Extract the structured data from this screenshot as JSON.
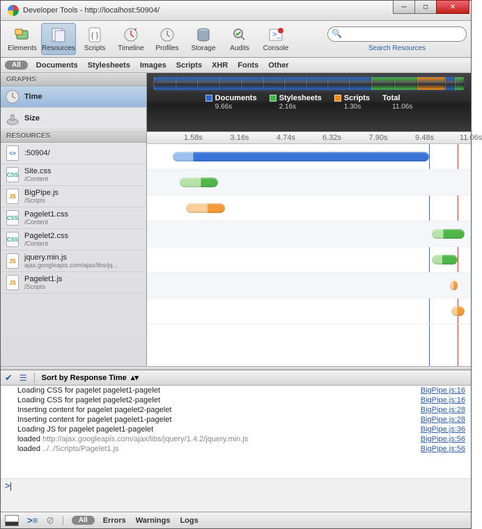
{
  "window": {
    "title": "Developer Tools - http://localhost:50904/"
  },
  "toolbar": {
    "items": [
      {
        "id": "elements",
        "label": "Elements"
      },
      {
        "id": "resources",
        "label": "Resources",
        "active": true
      },
      {
        "id": "scripts",
        "label": "Scripts"
      },
      {
        "id": "timeline",
        "label": "Timeline"
      },
      {
        "id": "profiles",
        "label": "Profiles"
      },
      {
        "id": "storage",
        "label": "Storage"
      },
      {
        "id": "audits",
        "label": "Audits"
      },
      {
        "id": "console",
        "label": "Console"
      }
    ],
    "search_placeholder": "",
    "search_link": "Search Resources"
  },
  "filters": {
    "all": "All",
    "items": [
      "Documents",
      "Stylesheets",
      "Images",
      "Scripts",
      "XHR",
      "Fonts",
      "Other"
    ]
  },
  "sidebar": {
    "graphs_header": "GRAPHS",
    "graphs": [
      {
        "id": "time",
        "label": "Time",
        "selected": true,
        "icon": "clock"
      },
      {
        "id": "size",
        "label": "Size",
        "icon": "weight"
      }
    ],
    "resources_header": "RESOURCES",
    "resources": [
      {
        "name": ":50904/",
        "path": "",
        "type": "doc"
      },
      {
        "name": "Site.css",
        "path": "/Content",
        "type": "css"
      },
      {
        "name": "BigPipe.js",
        "path": "/Scripts",
        "type": "js"
      },
      {
        "name": "Pagelet1.css",
        "path": "/Content",
        "type": "css"
      },
      {
        "name": "Pagelet2.css",
        "path": "/Content",
        "type": "css"
      },
      {
        "name": "jquery.min.js",
        "path": "ajax.googleapis.com/ajax/libs/jq...",
        "type": "js"
      },
      {
        "name": "Pagelet1.js",
        "path": "/Scripts",
        "type": "js"
      }
    ]
  },
  "overview": {
    "segments": [
      {
        "color": "#2b66c9",
        "pct": 70
      },
      {
        "color": "#45b648",
        "pct": 15
      },
      {
        "color": "#f28c1e",
        "pct": 9
      },
      {
        "color": "#2b66c9",
        "pct": 3
      },
      {
        "color": "#45b648",
        "pct": 3
      }
    ],
    "legend": [
      {
        "label": "Documents",
        "value": "9.66s",
        "color": "#2b66c9"
      },
      {
        "label": "Stylesheets",
        "value": "2.16s",
        "color": "#45b648"
      },
      {
        "label": "Scripts",
        "value": "1.30s",
        "color": "#f28c1e"
      },
      {
        "label": "Total",
        "value": "11.06s",
        "color": null
      }
    ]
  },
  "timeaxis": {
    "max": 11.06,
    "ticks": [
      {
        "label": "1.58s",
        "pct": 14.3
      },
      {
        "label": "3.16s",
        "pct": 28.6
      },
      {
        "label": "4.74s",
        "pct": 42.9
      },
      {
        "label": "6.32s",
        "pct": 57.1
      },
      {
        "label": "7.90s",
        "pct": 71.4
      },
      {
        "label": "9.48s",
        "pct": 85.7
      },
      {
        "label": "11.06s",
        "pct": 100
      }
    ],
    "markers": [
      {
        "pct": 87,
        "color": "#3b66c9"
      },
      {
        "pct": 96,
        "color": "#c03030"
      }
    ]
  },
  "tlrows": [
    {
      "start": 8,
      "width": 79,
      "light": "#9cc0f0",
      "dark": "#3b74d8",
      "split": 0.08
    },
    {
      "start": 10,
      "width": 12,
      "light": "#b7e3a8",
      "dark": "#4fb648",
      "split": 0.55
    },
    {
      "start": 12,
      "width": 12,
      "light": "#f6cf9a",
      "dark": "#f09a3a",
      "split": 0.55
    },
    {
      "start": 88,
      "width": 10,
      "light": "#b7e3a8",
      "dark": "#4fb648",
      "split": 0.35
    },
    {
      "start": 88,
      "width": 8,
      "light": "#b7e3a8",
      "dark": "#4fb648",
      "split": 0.4
    },
    {
      "start": 93.5,
      "width": 2.5,
      "light": "#f6cf9a",
      "dark": "#f09a3a",
      "split": 0.5
    },
    {
      "start": 94,
      "width": 4,
      "light": "#f6cf9a",
      "dark": "#f09a3a",
      "split": 0.45
    }
  ],
  "sort": {
    "label": "Sort by Response Time"
  },
  "console": [
    {
      "msg": "Loading CSS for pagelet pagelet1-pagelet",
      "src": "BigPipe.js:16"
    },
    {
      "msg": "Loading CSS for pagelet pagelet2-pagelet",
      "src": "BigPipe.js:16"
    },
    {
      "msg": "Inserting content for pagelet pagelet2-pagelet",
      "src": "BigPipe.js:28"
    },
    {
      "msg": "Inserting content for pagelet pagelet1-pagelet",
      "src": "BigPipe.js:28"
    },
    {
      "msg": "Loading JS for pagelet pagelet1-pagelet",
      "src": "BigPipe.js:36"
    },
    {
      "msg": "loaded ",
      "url": "http://ajax.googleapis.com/ajax/libs/jquery/1.4.2/jquery.min.js",
      "src": "BigPipe.js:56"
    },
    {
      "msg": "loaded ",
      "url": "../../Scripts/Pagelet1.js",
      "src": "BigPipe.js:56"
    }
  ],
  "status": {
    "all": "All",
    "items": [
      "Errors",
      "Warnings",
      "Logs"
    ]
  },
  "colors": {
    "doc": "#3b74d8",
    "css": "#4fb648",
    "js": "#f09a3a"
  }
}
